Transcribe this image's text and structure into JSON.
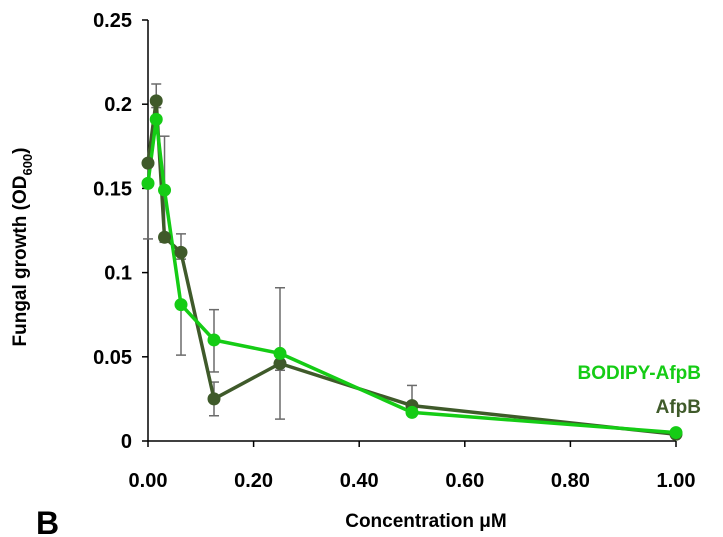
{
  "panel_label": "B",
  "colors": {
    "afpb": "#3f5a2a",
    "bodipy": "#15cc15",
    "error_bar": "#6b6b6b",
    "axis": "#000000"
  },
  "chart_data": {
    "type": "line",
    "title": "",
    "xlabel": "Concentration μM",
    "ylabel_main": "Fungal growth (OD",
    "ylabel_sub": "600",
    "ylabel_close": ")",
    "xlim": [
      0,
      1.0
    ],
    "ylim": [
      0,
      0.25
    ],
    "xticks": [
      0,
      0.2,
      0.4,
      0.6,
      0.8,
      1.0
    ],
    "xtick_labels": [
      "0.00",
      "0.20",
      "0.40",
      "0.60",
      "0.80",
      "1.00"
    ],
    "yticks": [
      0,
      0.05,
      0.1,
      0.15,
      0.2,
      0.25
    ],
    "ytick_labels": [
      "0",
      "0.05",
      "0.1",
      "0.15",
      "0.2",
      "0.25"
    ],
    "grid": false,
    "legend_placement": "right, as direct labels",
    "series": [
      {
        "name": "AfpB",
        "color_key": "afpb",
        "x": [
          0.0,
          0.0156,
          0.0313,
          0.0625,
          0.125,
          0.25,
          0.5,
          1.0
        ],
        "y": [
          0.165,
          0.202,
          0.121,
          0.112,
          0.025,
          0.046,
          0.021,
          0.004
        ],
        "err_low": [
          0.12,
          0.198,
          0.118,
          0.108,
          0.015,
          0.042,
          0.019,
          0.003
        ],
        "err_high": [
          0.165,
          0.212,
          0.181,
          0.123,
          0.035,
          0.046,
          0.033,
          0.005
        ]
      },
      {
        "name": "BODIPY-AfpB",
        "color_key": "bodipy",
        "x": [
          0.0,
          0.0156,
          0.0313,
          0.0625,
          0.125,
          0.25,
          0.5,
          1.0
        ],
        "y": [
          0.153,
          0.191,
          0.149,
          0.081,
          0.06,
          0.052,
          0.017,
          0.005
        ],
        "err_low": [
          0.153,
          0.191,
          0.149,
          0.051,
          0.041,
          0.013,
          0.016,
          0.005
        ],
        "err_high": [
          0.153,
          0.191,
          0.149,
          0.081,
          0.078,
          0.091,
          0.017,
          0.005
        ]
      }
    ]
  }
}
